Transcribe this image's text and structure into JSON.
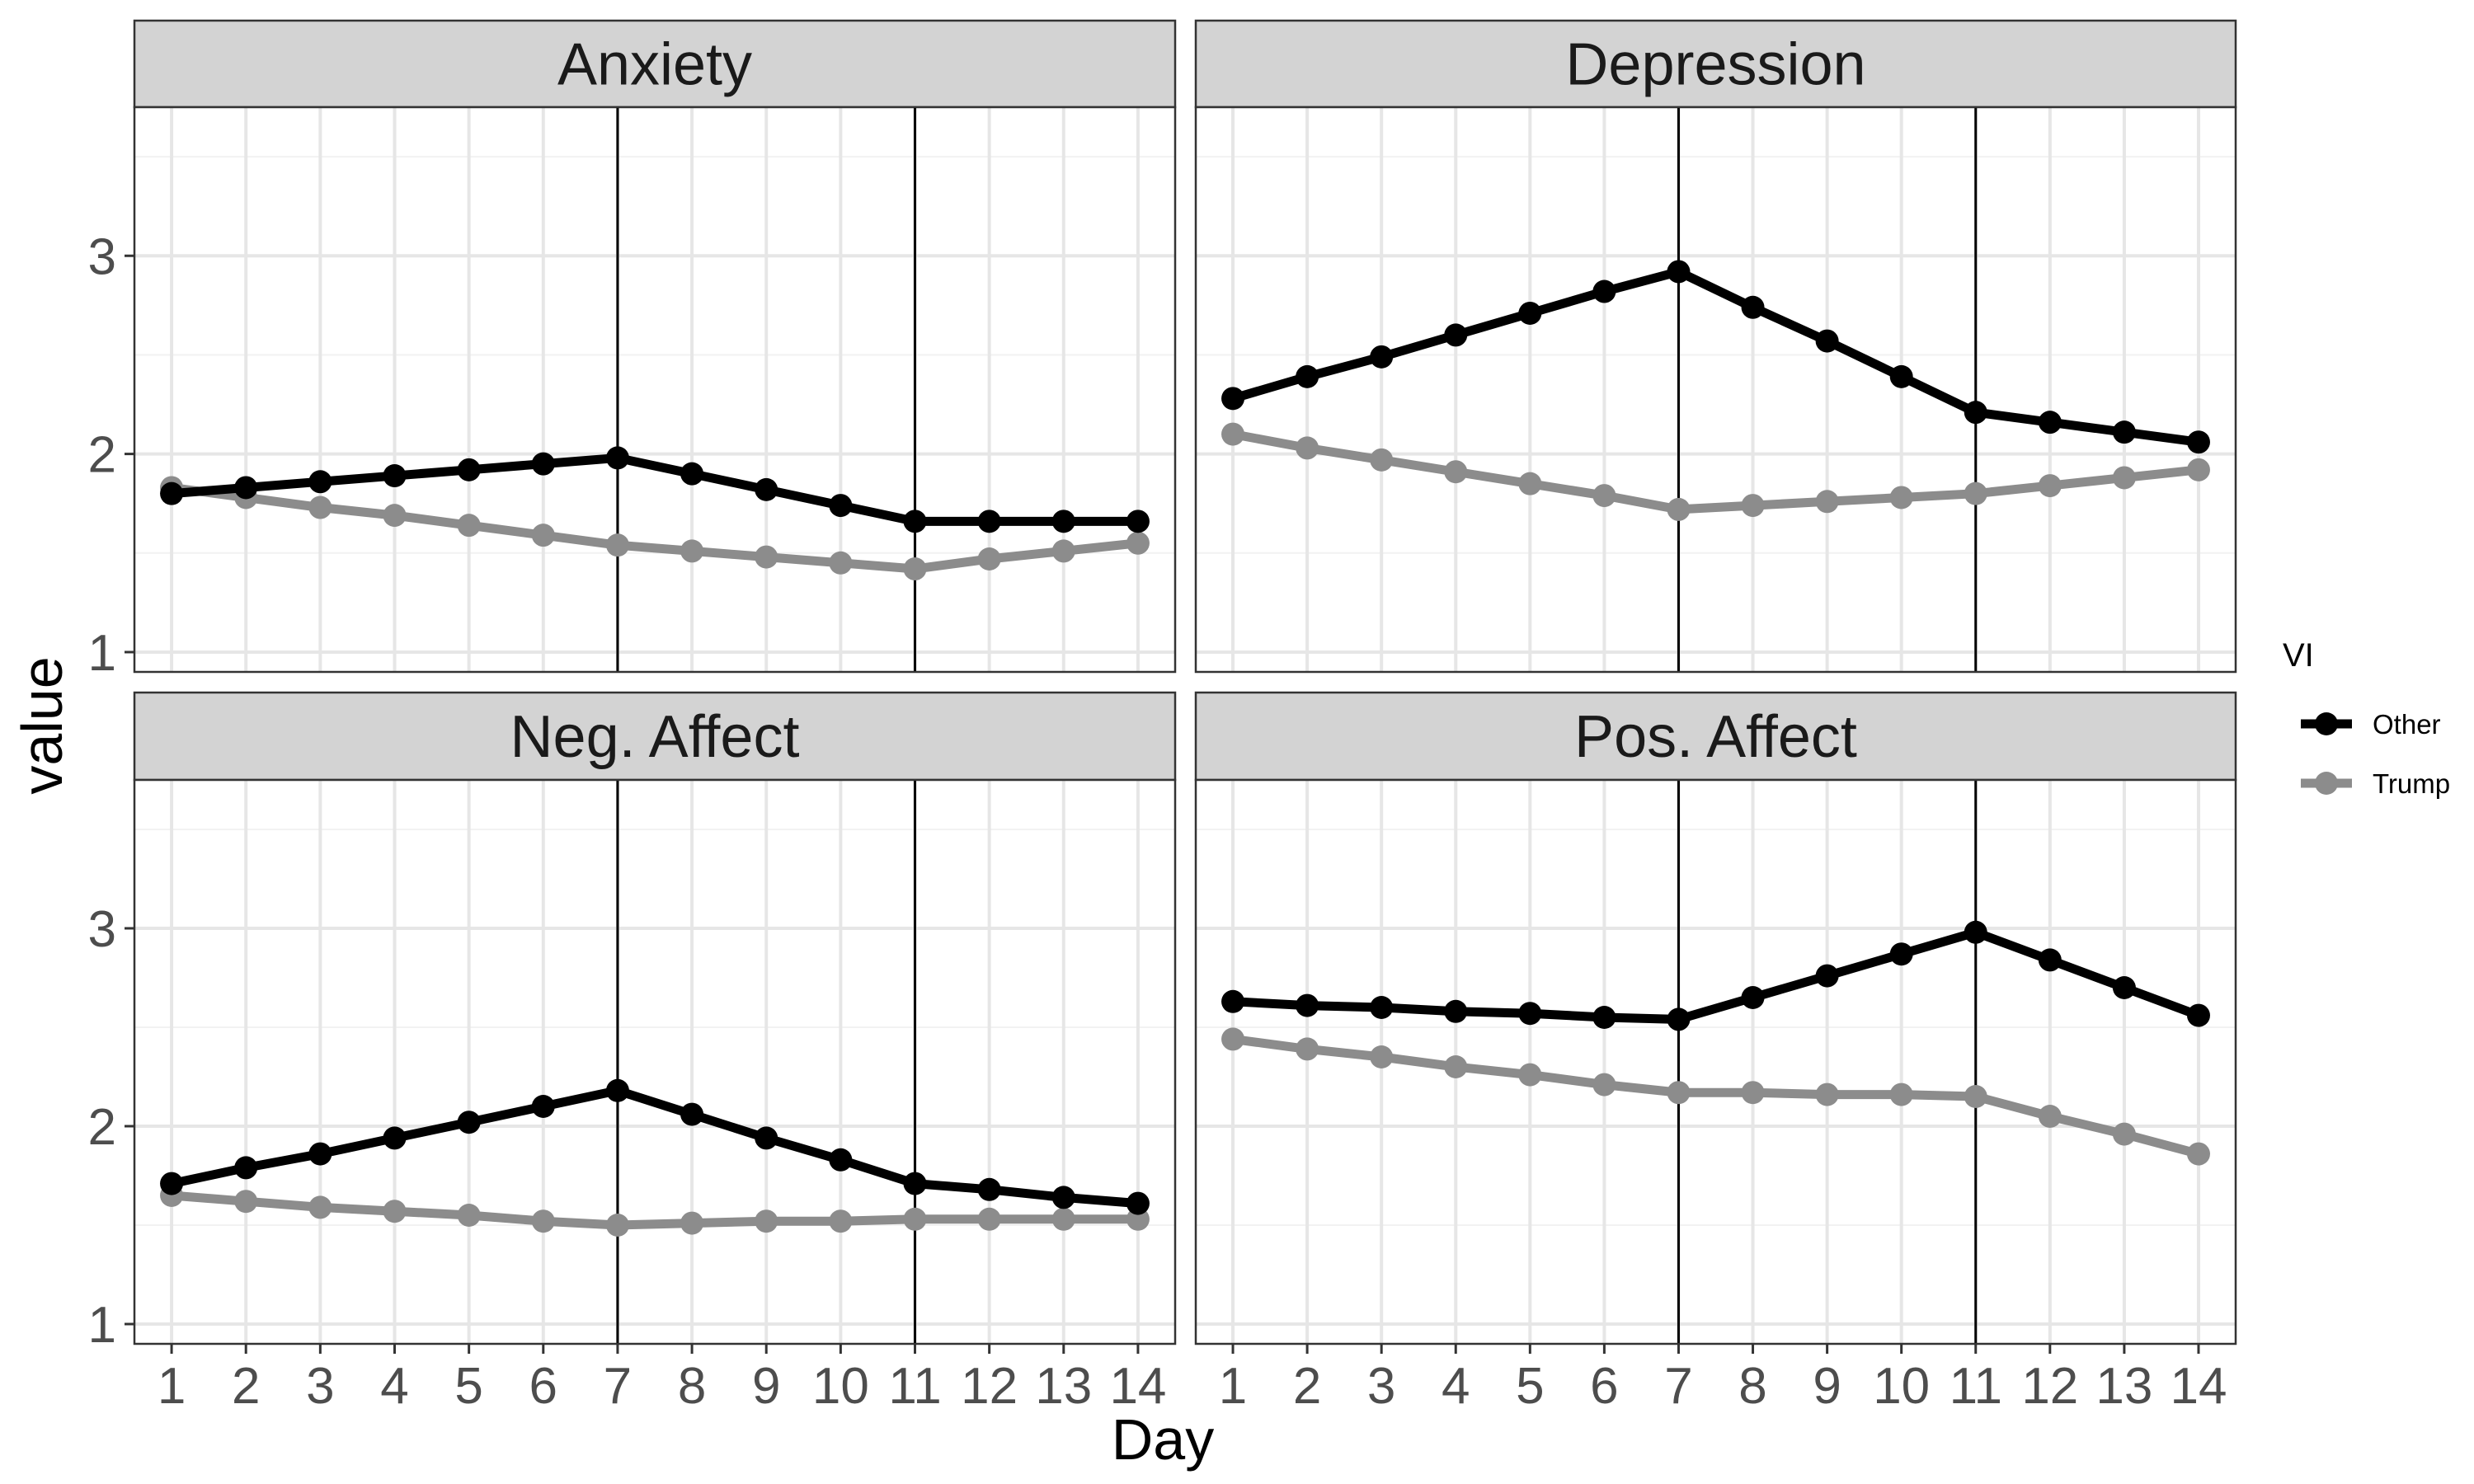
{
  "chart_data": {
    "type": "line",
    "xlabel": "Day",
    "ylabel": "value",
    "x": [
      1,
      2,
      3,
      4,
      5,
      6,
      7,
      8,
      9,
      10,
      11,
      12,
      13,
      14
    ],
    "x_tick_labels": [
      "1",
      "2",
      "3",
      "4",
      "5",
      "6",
      "7",
      "8",
      "9",
      "10",
      "11",
      "12",
      "13",
      "14"
    ],
    "ylim": [
      0.9,
      3.75
    ],
    "y_ticks": [
      1,
      2,
      3
    ],
    "y_tick_labels": [
      "1",
      "2",
      "3"
    ],
    "reference_lines_x": [
      7,
      11
    ],
    "grid": true,
    "legend": {
      "title": "VI",
      "position": "right",
      "entries": [
        "Other",
        "Trump"
      ]
    },
    "colors": {
      "Other": "#000000",
      "Trump": "#8c8c8c",
      "strip_fill": "#d3d3d3",
      "grid": "#e6e6e6",
      "panel_border": "#333333",
      "reference_line": "#000000"
    },
    "facets": [
      {
        "title": "Anxiety",
        "series": [
          {
            "name": "Other",
            "values": [
              1.8,
              1.83,
              1.86,
              1.89,
              1.92,
              1.95,
              1.98,
              1.9,
              1.82,
              1.74,
              1.66,
              1.66,
              1.66,
              1.66
            ]
          },
          {
            "name": "Trump",
            "values": [
              1.83,
              1.78,
              1.73,
              1.69,
              1.64,
              1.59,
              1.54,
              1.51,
              1.48,
              1.45,
              1.42,
              1.47,
              1.51,
              1.55
            ]
          }
        ]
      },
      {
        "title": "Depression",
        "series": [
          {
            "name": "Other",
            "values": [
              2.28,
              2.39,
              2.49,
              2.6,
              2.71,
              2.82,
              2.92,
              2.74,
              2.57,
              2.39,
              2.21,
              2.16,
              2.11,
              2.06
            ]
          },
          {
            "name": "Trump",
            "values": [
              2.1,
              2.03,
              1.97,
              1.91,
              1.85,
              1.79,
              1.72,
              1.74,
              1.76,
              1.78,
              1.8,
              1.84,
              1.88,
              1.92
            ]
          }
        ]
      },
      {
        "title": "Neg. Affect",
        "series": [
          {
            "name": "Other",
            "values": [
              1.71,
              1.79,
              1.86,
              1.94,
              2.02,
              2.1,
              2.18,
              2.06,
              1.94,
              1.83,
              1.71,
              1.68,
              1.64,
              1.61
            ]
          },
          {
            "name": "Trump",
            "values": [
              1.65,
              1.62,
              1.59,
              1.57,
              1.55,
              1.52,
              1.5,
              1.51,
              1.52,
              1.52,
              1.53,
              1.53,
              1.53,
              1.53
            ]
          }
        ]
      },
      {
        "title": "Pos. Affect",
        "series": [
          {
            "name": "Other",
            "values": [
              2.63,
              2.61,
              2.6,
              2.58,
              2.57,
              2.55,
              2.54,
              2.65,
              2.76,
              2.87,
              2.98,
              2.84,
              2.7,
              2.56
            ]
          },
          {
            "name": "Trump",
            "values": [
              2.44,
              2.39,
              2.35,
              2.3,
              2.26,
              2.21,
              2.17,
              2.17,
              2.16,
              2.16,
              2.15,
              2.05,
              1.96,
              1.86
            ]
          }
        ]
      }
    ]
  }
}
